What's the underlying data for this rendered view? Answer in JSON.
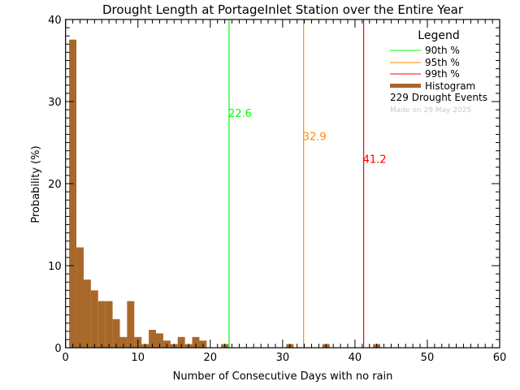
{
  "chart_data": {
    "type": "bar",
    "title": "Drought Length at PortageInlet Station over the Entire Year",
    "xlabel": "Number of Consecutive Days with no rain",
    "ylabel": "Probability (%)",
    "xlim": [
      0,
      60
    ],
    "ylim": [
      0,
      40
    ],
    "xticks": [
      "0",
      "10",
      "20",
      "30",
      "40",
      "50",
      "60"
    ],
    "yticks": [
      "0",
      "10",
      "20",
      "30",
      "40"
    ],
    "grid": false,
    "bar_color": "#a8682a",
    "x": [
      1,
      2,
      3,
      4,
      5,
      6,
      7,
      8,
      9,
      10,
      11,
      12,
      13,
      14,
      15,
      16,
      17,
      18,
      19,
      22,
      31,
      36,
      43
    ],
    "values": [
      37.55,
      12.23,
      8.3,
      6.99,
      5.68,
      5.68,
      3.49,
      1.31,
      5.68,
      1.31,
      0.44,
      2.18,
      1.75,
      0.87,
      0.44,
      1.31,
      0.44,
      1.31,
      0.87,
      0.44,
      0.44,
      0.44,
      0.44
    ],
    "percentiles": [
      {
        "name": "90th %",
        "value": 22.6,
        "label": "22.6",
        "color": "#00ff00"
      },
      {
        "name": "95th %",
        "value": 32.9,
        "label": "32.9",
        "color": "#ff8c00"
      },
      {
        "name": "99th %",
        "value": 41.2,
        "label": "41.2",
        "color": "#ff0000"
      }
    ],
    "legend": {
      "title": "Legend",
      "placement": "top-right",
      "histogram_label": "Histogram",
      "events": "229 Drought Events",
      "made_on": "Made on 29 May 2025"
    }
  }
}
